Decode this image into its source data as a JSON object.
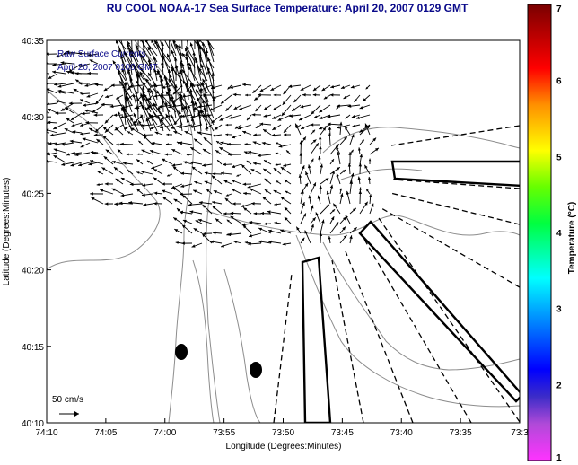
{
  "chart_data": {
    "type": "map",
    "title": "RU COOL  NOAA-17  Sea Surface Temperature:  April 20, 2007 0129 GMT",
    "xlabel": "Longitude (Degrees:Minutes)",
    "ylabel": "Latitude (Degrees:Minutes)",
    "x_ticks": [
      "74:10",
      "74:05",
      "74:00",
      "73:55",
      "73:50",
      "73:45",
      "73:40",
      "73:35",
      "73:3"
    ],
    "y_ticks": [
      "40:35",
      "40:30",
      "40:25",
      "40:20",
      "40:15",
      "40:10"
    ],
    "xlim": [
      "74:10",
      "73:30"
    ],
    "ylim": [
      "40:10",
      "40:35"
    ],
    "overlay_text": [
      "Raw Surface Currents",
      "April 20, 2007 0100 GMT"
    ],
    "scale_label": "50 cm/s",
    "colorbar": {
      "label": "Temperature (°C)",
      "ticks": [
        "7",
        "6",
        "5",
        "4",
        "3",
        "2",
        "1"
      ],
      "range": [
        1,
        7
      ]
    },
    "markers": [
      {
        "lon_min": 58.8,
        "lat_min": 14.6
      },
      {
        "lon_min": 52.3,
        "lat_min": 13.3
      }
    ],
    "grid": false
  },
  "colors": {
    "title": "#0a0a8a",
    "contour": "#8c8c8c",
    "arrow": "#000000"
  }
}
